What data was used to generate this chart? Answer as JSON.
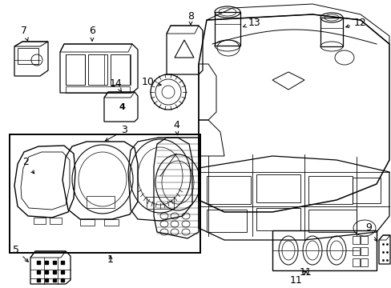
{
  "bg": "#ffffff",
  "lw": 0.8,
  "fig_w": 4.89,
  "fig_h": 3.6,
  "dpi": 100
}
